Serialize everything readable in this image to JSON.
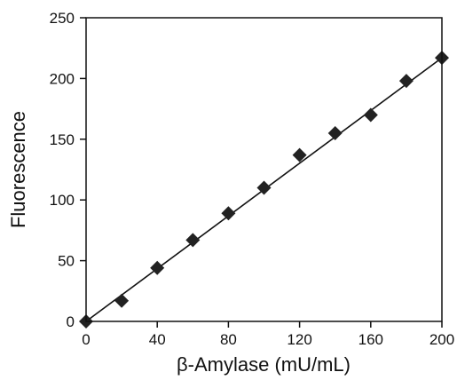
{
  "chart_data": {
    "type": "scatter",
    "xlabel": "β-Amylase (mU/mL)",
    "ylabel": "Fluorescence",
    "xlim": [
      0,
      200
    ],
    "ylim": [
      0,
      250
    ],
    "xticks": [
      0,
      40,
      80,
      120,
      160,
      200
    ],
    "yticks": [
      0,
      50,
      100,
      150,
      200,
      250
    ],
    "grid": false,
    "series": [
      {
        "marker": "diamond",
        "x": [
          0,
          20,
          40,
          60,
          80,
          100,
          120,
          140,
          160,
          180,
          200
        ],
        "y": [
          0,
          17,
          44,
          67,
          89,
          110,
          137,
          155,
          170,
          198,
          217
        ]
      }
    ],
    "trendline": {
      "type": "linear",
      "x": [
        0,
        200
      ],
      "y": [
        0,
        217
      ]
    },
    "colors": {
      "marker": "#222222",
      "line": "#111111",
      "axis": "#111111"
    }
  }
}
